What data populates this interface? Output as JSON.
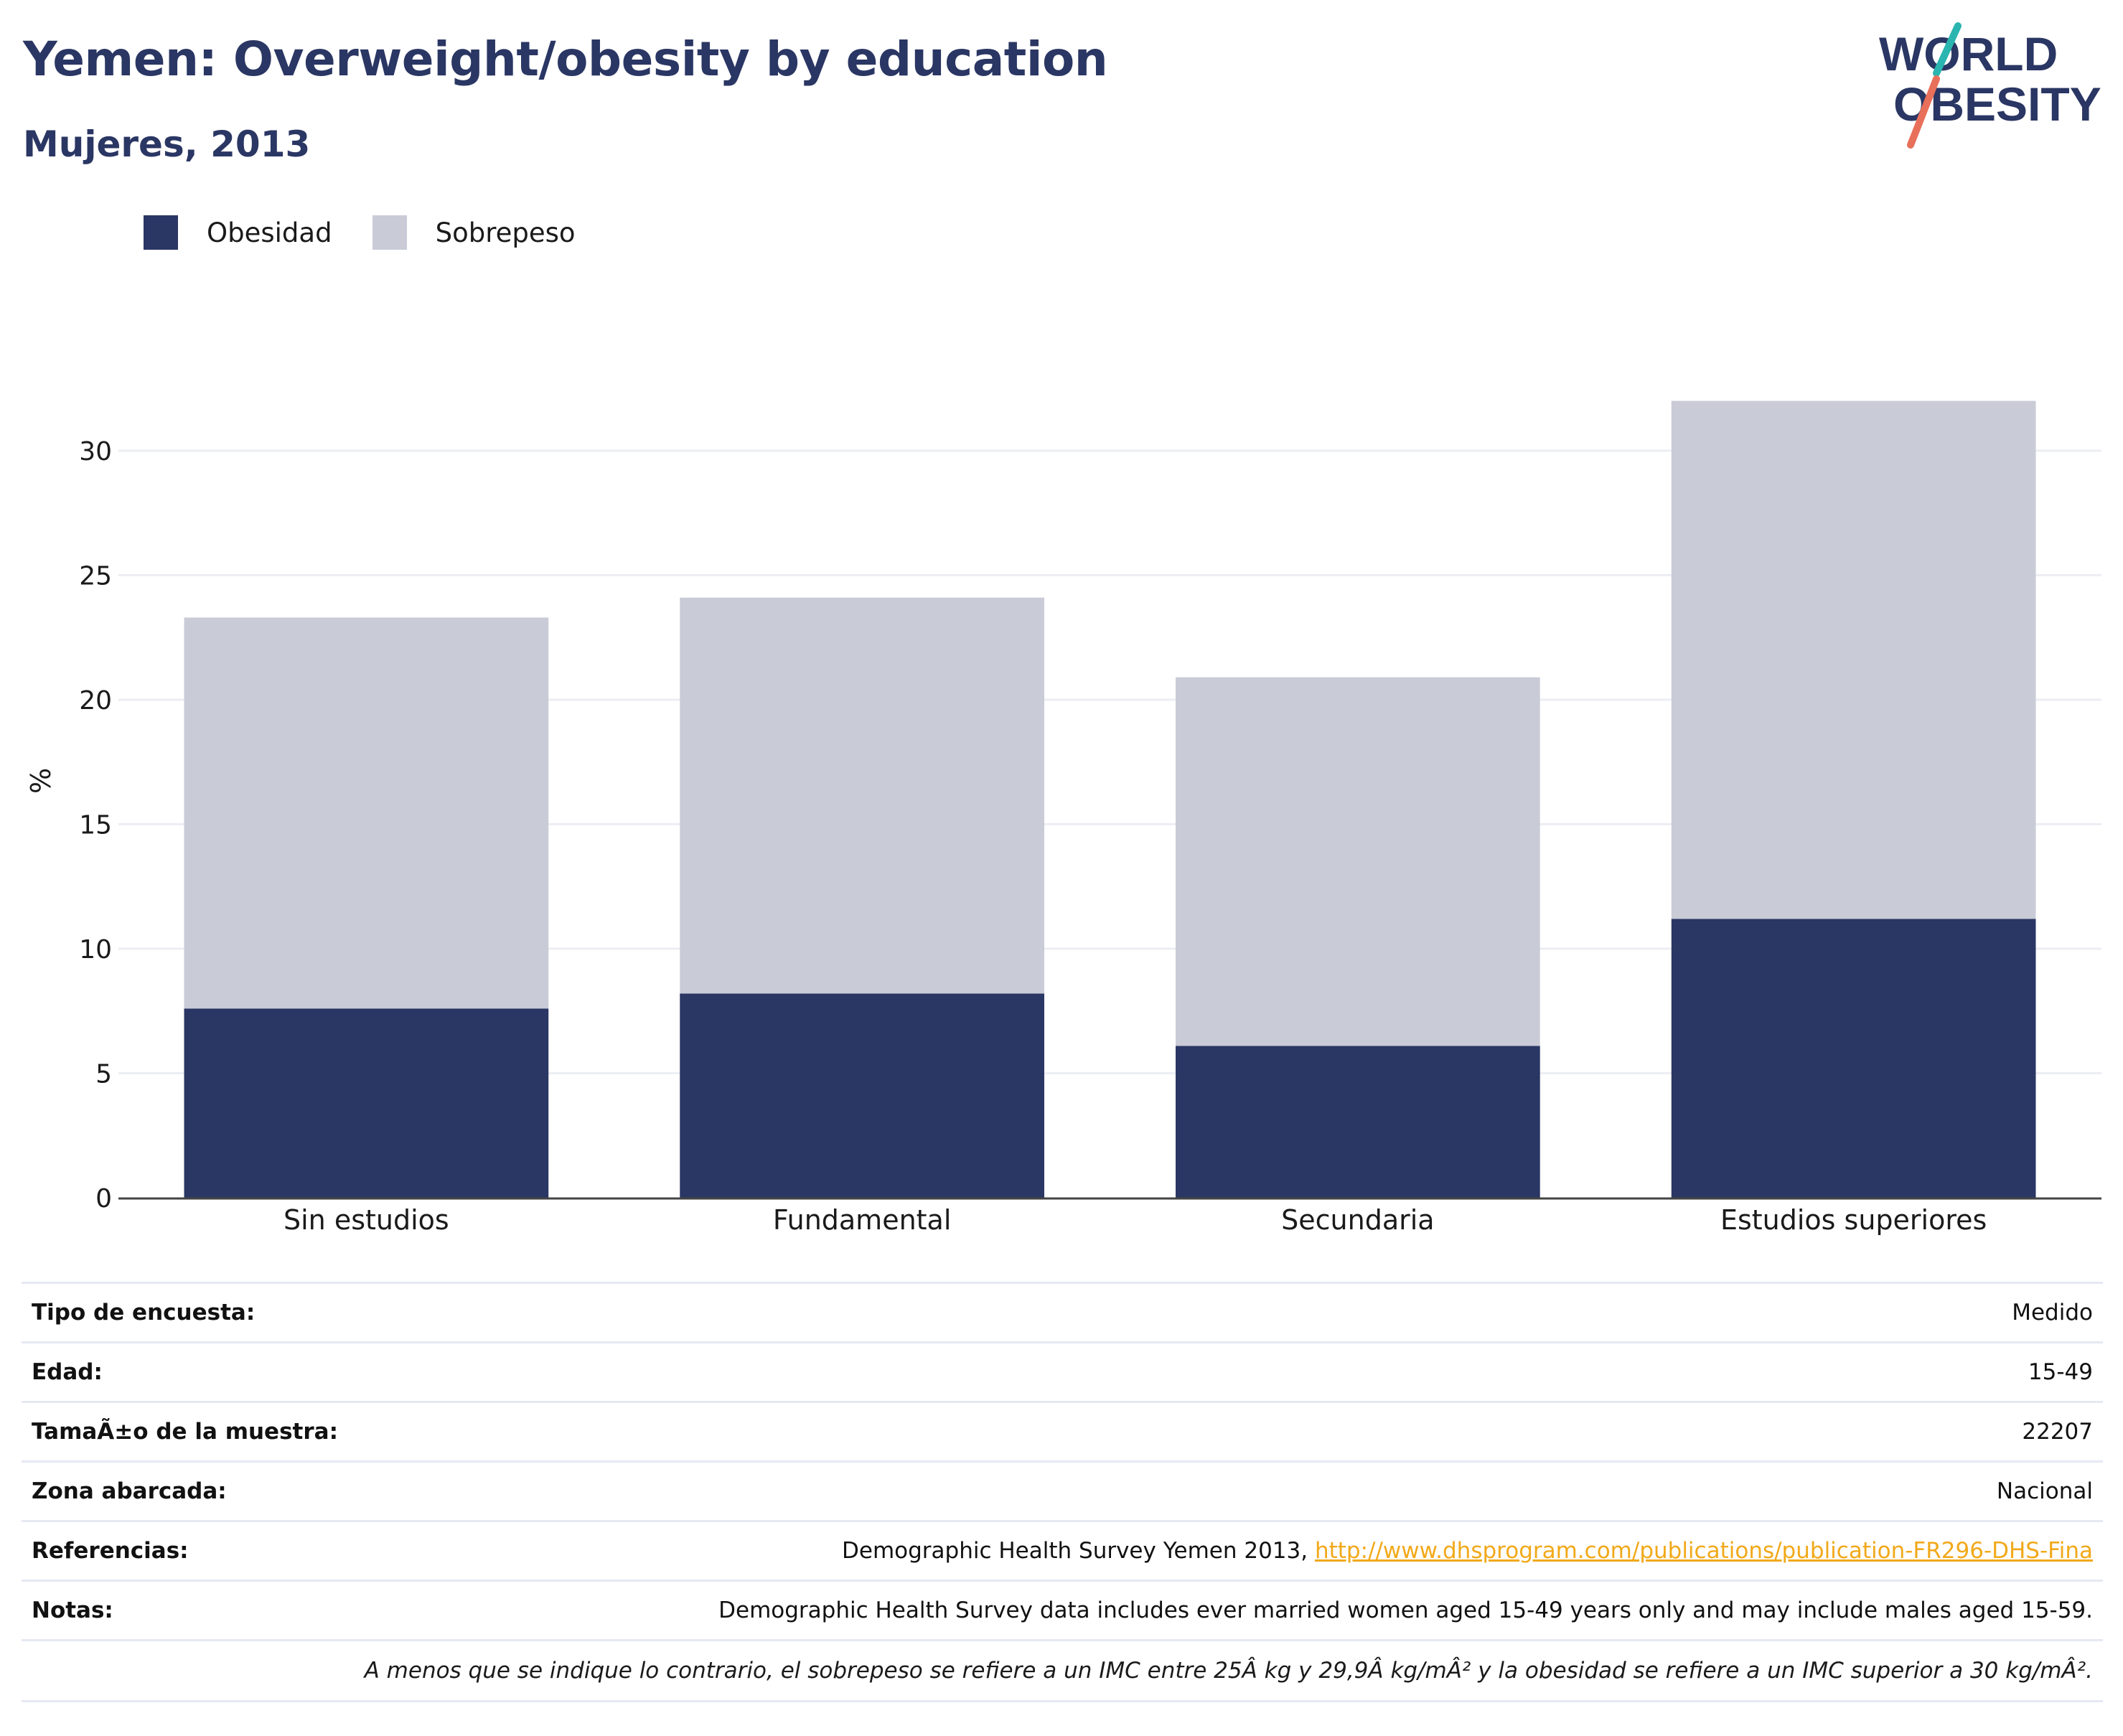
{
  "title": "Yemen: Overweight/obesity by education",
  "subtitle": "Mujeres, 2013",
  "logo": {
    "line1": "WORLD",
    "line2": "OBESITY"
  },
  "colors": {
    "obesity": "#2a3663",
    "overweight": "#c9cbd7",
    "title": "#2a3663",
    "link": "#f1a91a",
    "logo_teal": "#2bb5b0",
    "logo_coral": "#e8705a"
  },
  "legend": [
    {
      "label": "Obesidad",
      "color": "#2a3663"
    },
    {
      "label": "Sobrepeso",
      "color": "#c9cbd7"
    }
  ],
  "chart_data": {
    "type": "bar",
    "stacked": true,
    "categories": [
      "Sin estudios",
      "Fundamental",
      "Secundaria",
      "Estudios superiores"
    ],
    "series": [
      {
        "name": "Obesidad",
        "values": [
          7.6,
          8.2,
          6.1,
          11.2
        ]
      },
      {
        "name": "Sobrepeso",
        "values": [
          15.7,
          15.9,
          14.8,
          20.8
        ]
      }
    ],
    "ylabel": "%",
    "ylim": [
      0,
      32
    ],
    "yticks": [
      0,
      5,
      10,
      15,
      20,
      25,
      30
    ],
    "grid": true,
    "legend_position": "top-left"
  },
  "info": [
    {
      "key": "Tipo de encuesta:",
      "value": "Medido"
    },
    {
      "key": "Edad:",
      "value": "15-49"
    },
    {
      "key": "TamaÃ±o de la muestra:",
      "value": "22207"
    },
    {
      "key": "Zona abarcada:",
      "value": "Nacional"
    },
    {
      "key": "Referencias:",
      "value": "Demographic Health Survey Yemen 2013, ",
      "link": "http://www.dhsprogram.com/publications/publication-FR296-DHS-Fina"
    },
    {
      "key": "Notas:",
      "value": "Demographic Health Survey data includes ever married women aged 15-49 years only and may include males aged 15-59."
    }
  ],
  "footnote": "A menos que se indique lo contrario, el sobrepeso se refiere a un IMC entre 25Â kg y 29,9Â kg/mÂ² y la obesidad se refiere a un IMC superior a 30 kg/mÂ²."
}
